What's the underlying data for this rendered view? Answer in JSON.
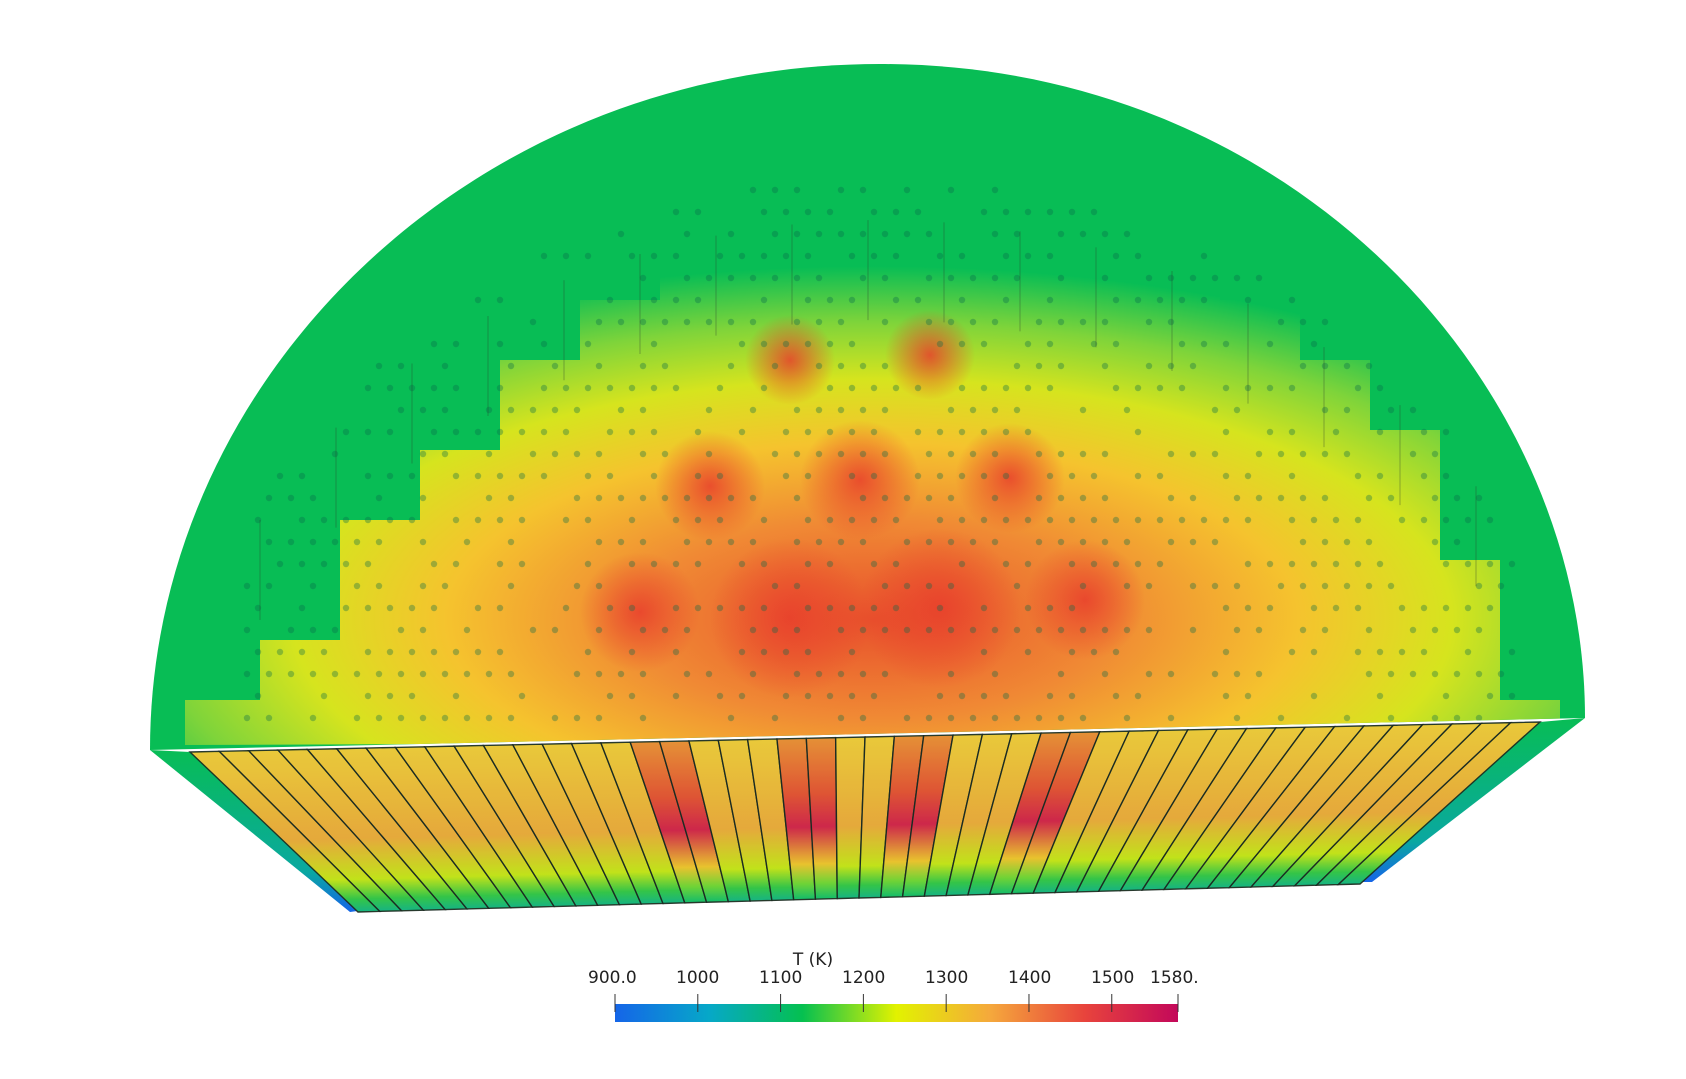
{
  "colorbar": {
    "title": "T (K)",
    "range": [
      900.0,
      1580.0
    ],
    "tick_labels": [
      "900.0",
      "1000",
      "1100",
      "1200",
      "1300",
      "1400",
      "1500",
      "1580."
    ],
    "tick_values": [
      900,
      1000,
      1100,
      1200,
      1300,
      1400,
      1500,
      1580
    ],
    "colormap": [
      "#1565e8",
      "#06a8c8",
      "#05c050",
      "#e2f200",
      "#f5a83c",
      "#e8443c",
      "#c3085a"
    ]
  },
  "colors": {
    "background": "#ffffff",
    "dome_base": "#08bd55",
    "core_hot": "#e64a2a",
    "core_mid": "#f7c02a",
    "core_warm": "#d9e218",
    "peak": "#cc0a52",
    "bottom_cold": "#1565e8"
  }
}
